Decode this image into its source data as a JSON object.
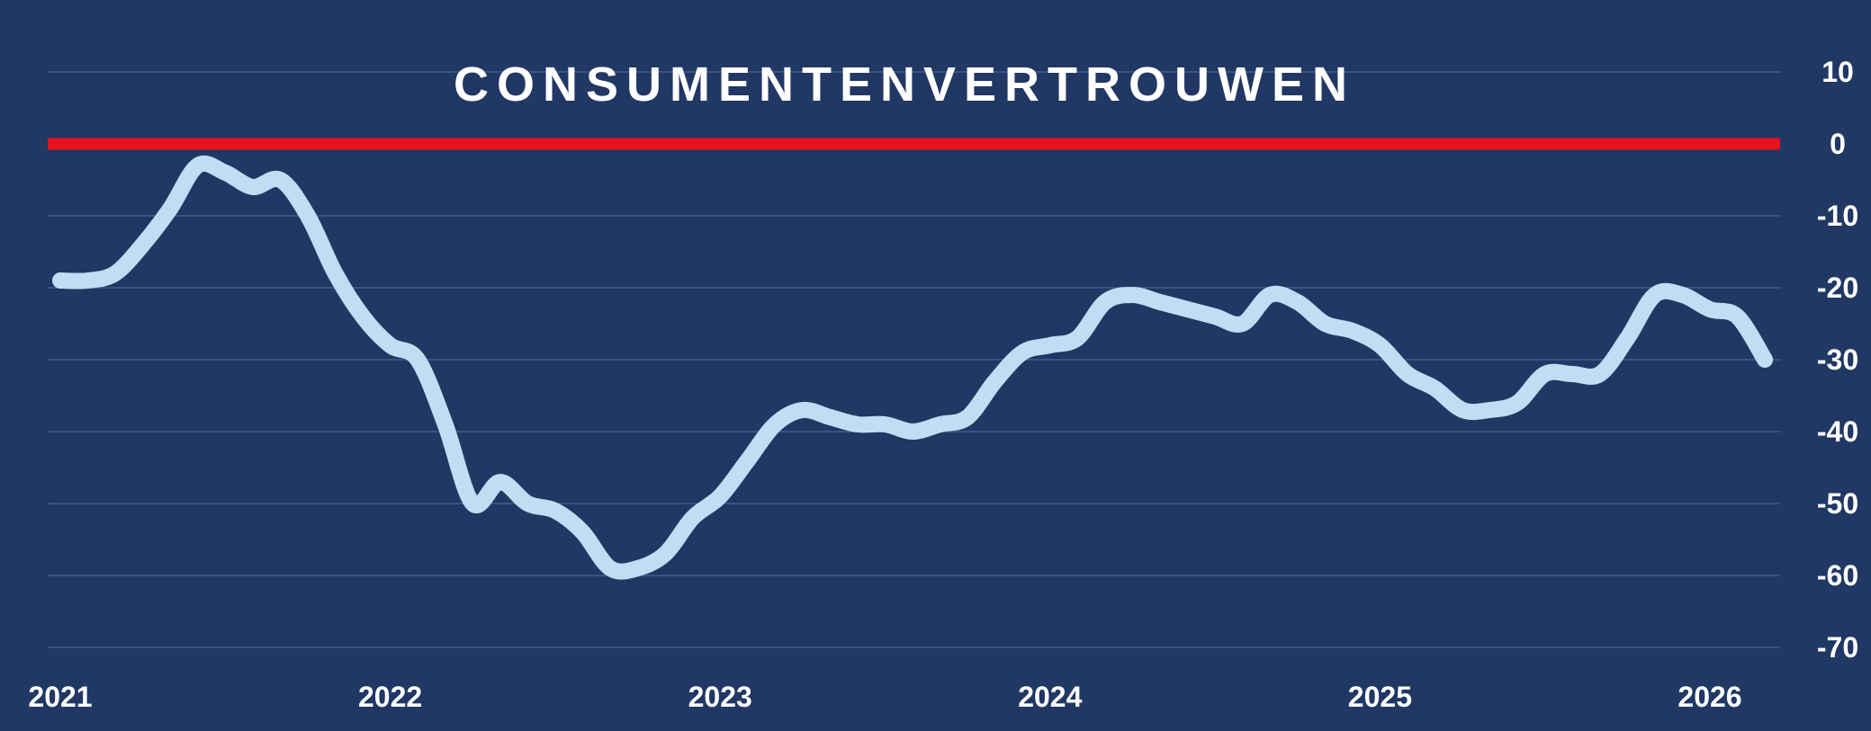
{
  "chart_data": {
    "type": "line",
    "title": "CONSUMENTENVERTROUWEN",
    "xlabel": "",
    "ylabel": "",
    "x_tick_labels": [
      "2021",
      "2022",
      "2023",
      "2024",
      "2025",
      "2026"
    ],
    "y_tick_labels": [
      "10",
      "0",
      "-10",
      "-20",
      "-30",
      "-40",
      "-50",
      "-60",
      "-70"
    ],
    "ylim": [
      -70,
      10
    ],
    "xlim": [
      "2021-01",
      "2026-03"
    ],
    "grid": true,
    "reference_line": {
      "value": 0,
      "color": "#e8121c"
    },
    "series": [
      {
        "color": "#c2dcf3",
        "x": [
          "2021-01",
          "2021-02",
          "2021-03",
          "2021-04",
          "2021-05",
          "2021-06",
          "2021-07",
          "2021-08",
          "2021-09",
          "2021-10",
          "2021-11",
          "2021-12",
          "2022-01",
          "2022-02",
          "2022-03",
          "2022-04",
          "2022-05",
          "2022-06",
          "2022-07",
          "2022-08",
          "2022-09",
          "2022-10",
          "2022-11",
          "2022-12",
          "2023-01",
          "2023-02",
          "2023-03",
          "2023-04",
          "2023-05",
          "2023-06",
          "2023-07",
          "2023-08",
          "2023-09",
          "2023-10",
          "2023-11",
          "2023-12",
          "2024-01",
          "2024-02",
          "2024-03",
          "2024-04",
          "2024-05",
          "2024-06",
          "2024-07",
          "2024-08",
          "2024-09",
          "2024-10",
          "2024-11",
          "2024-12",
          "2025-01",
          "2025-02",
          "2025-03",
          "2025-04",
          "2025-05",
          "2025-06",
          "2025-07",
          "2025-08",
          "2025-09",
          "2025-10",
          "2025-11",
          "2025-12",
          "2026-01",
          "2026-02",
          "2026-03"
        ],
        "values": [
          -19,
          -19,
          -18,
          -14,
          -9,
          -3,
          -4,
          -6,
          -5,
          -10,
          -18,
          -24,
          -28,
          -30,
          -39,
          -50,
          -47,
          -50,
          -51,
          -54,
          -59,
          -59,
          -57,
          -52,
          -49,
          -44,
          -39,
          -37,
          -38,
          -39,
          -39,
          -40,
          -39,
          -38,
          -33,
          -29,
          -28,
          -27,
          -22,
          -21,
          -22,
          -23,
          -24,
          -25,
          -21,
          -22,
          -25,
          -26,
          -28,
          -32,
          -34,
          -37,
          -37,
          -36,
          -32,
          -32,
          -32,
          -27,
          -21,
          -21,
          -23,
          -24,
          -30
        ]
      }
    ]
  }
}
